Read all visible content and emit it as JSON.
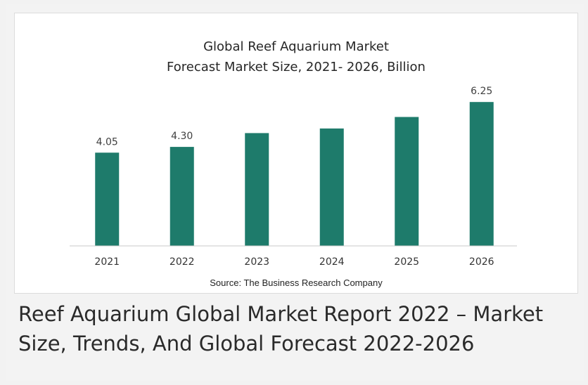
{
  "chart_data": {
    "type": "bar",
    "title": "Global Reef Aquarium Market",
    "subtitle": "Forecast Market Size, 2021- 2026, Billion",
    "categories": [
      "2021",
      "2022",
      "2023",
      "2024",
      "2025",
      "2026"
    ],
    "values": [
      4.05,
      4.3,
      4.9,
      5.1,
      5.6,
      6.25
    ],
    "data_labels": [
      "4.05",
      "4.30",
      "",
      "",
      "",
      "6.25"
    ],
    "ylim": [
      0,
      6.5
    ],
    "grid": false,
    "bar_color": "#1e7b6b",
    "source": "Source: The Business Research Company"
  },
  "caption": "Reef Aquarium Global Market Report 2022 – Market Size, Trends, And Global Forecast 2022-2026"
}
